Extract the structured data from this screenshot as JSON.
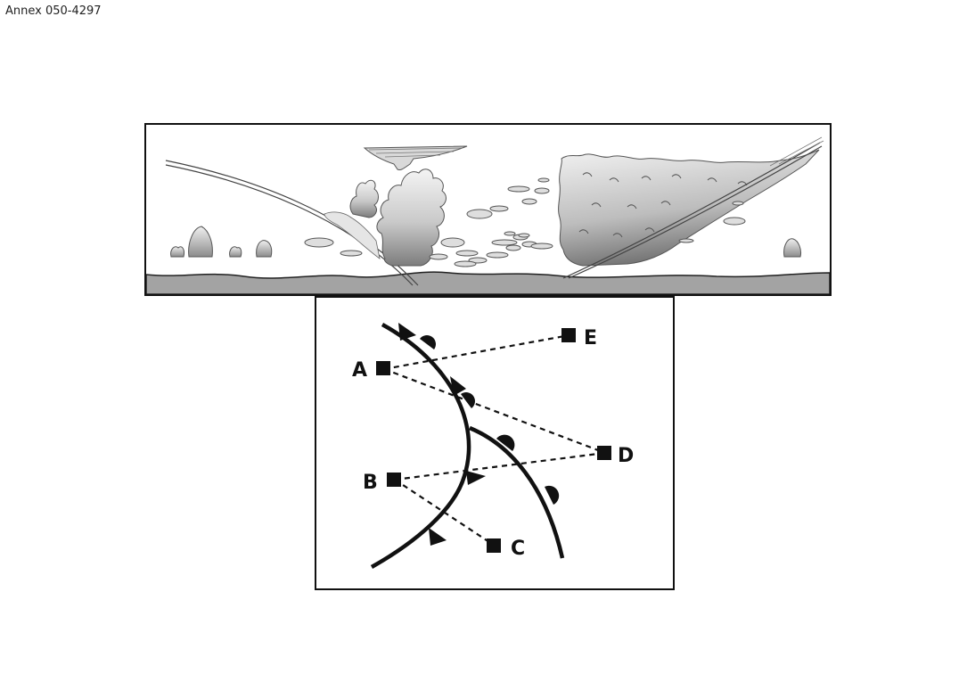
{
  "header": {
    "annex_label": "Annex 050-4297"
  },
  "cross_section": {
    "fronts": [
      "cold-front-slope",
      "warm-front-slope"
    ],
    "clouds": [
      "cumulonimbus",
      "nimbostratus",
      "cumulus",
      "altocumulus",
      "cirrus"
    ]
  },
  "front_map": {
    "points": {
      "A": {
        "label": "A"
      },
      "B": {
        "label": "B"
      },
      "C": {
        "label": "C"
      },
      "D": {
        "label": "D"
      },
      "E": {
        "label": "E"
      }
    },
    "routes": [
      [
        "A",
        "E"
      ],
      [
        "A",
        "D"
      ],
      [
        "B",
        "D"
      ],
      [
        "B",
        "C"
      ]
    ],
    "fronts": [
      "cold-front",
      "warm-front"
    ]
  }
}
